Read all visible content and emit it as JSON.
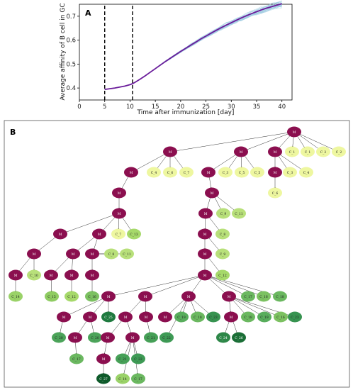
{
  "chart_data": [
    {
      "panel": "A",
      "type": "line",
      "xlabel": "Time after immunization [day]",
      "ylabel": "Average affinity of B cell in GC",
      "xlim": [
        0,
        42
      ],
      "ylim": [
        0.35,
        0.75
      ],
      "xticks": [
        "0",
        "5",
        "10",
        "15",
        "20",
        "25",
        "30",
        "35",
        "40"
      ],
      "yticks": [
        "0.4",
        "0.5",
        "0.6",
        "0.7"
      ],
      "xtick_values": [
        0,
        5,
        10,
        15,
        20,
        25,
        30,
        35,
        40
      ],
      "ytick_values": [
        0.4,
        0.5,
        0.6,
        0.7
      ],
      "vlines": [
        5,
        10.5
      ],
      "mean_series": {
        "color": "#6a1b9a",
        "x": [
          5,
          6,
          7,
          8,
          9,
          10,
          10.5,
          11,
          12,
          13,
          14,
          15,
          16,
          17,
          18,
          19,
          20,
          21,
          22,
          23,
          24,
          25,
          26,
          27,
          28,
          29,
          30,
          31,
          32,
          33,
          34,
          35,
          36,
          37,
          38,
          39,
          40
        ],
        "y": [
          0.394,
          0.397,
          0.4,
          0.404,
          0.408,
          0.414,
          0.418,
          0.424,
          0.437,
          0.451,
          0.466,
          0.481,
          0.496,
          0.511,
          0.525,
          0.539,
          0.553,
          0.566,
          0.579,
          0.592,
          0.605,
          0.617,
          0.629,
          0.641,
          0.652,
          0.663,
          0.673,
          0.683,
          0.693,
          0.702,
          0.711,
          0.719,
          0.727,
          0.734,
          0.74,
          0.746,
          0.752
        ]
      },
      "replicate_color": "#9ecae1",
      "replicate_count": 30
    },
    {
      "panel": "B",
      "type": "tree",
      "colors": {
        "M": "#8b0f4f",
        "C_1": "#eef7a0",
        "C_2": "#eef7a0",
        "C_3": "#eef7a0",
        "C_4": "#eef7a0",
        "C_5": "#eef7a0",
        "C_6": "#eef7a0",
        "C_7": "#eef7a0",
        "C_8": "#b8e07a",
        "C_9": "#b8e07a",
        "C_10": "#b8e07a",
        "C_11": "#b8e07a",
        "C_12": "#a6d96a",
        "C_13": "#a6d96a",
        "C_14": "#9ad268",
        "C_15": "#8fcc62",
        "C_16": "#7cc161",
        "C_17": "#6bb860",
        "C_18": "#6bb860",
        "C_19": "#58ad5c",
        "C_20": "#4ca45a",
        "C_21": "#46a057",
        "C_22": "#3e9a55",
        "C_23": "#379350",
        "C_24": "#2d8748",
        "C_25": "#1f7a3f",
        "C_26": "#1a6e36",
        "C_27": "#0e5a2a"
      },
      "nodes": [
        {
          "id": "n0",
          "label": "M"
        },
        {
          "id": "n1",
          "label": "M",
          "parent": "n0"
        },
        {
          "id": "n2",
          "label": "M",
          "parent": "n0"
        },
        {
          "id": "n3",
          "label": "M",
          "parent": "n0"
        },
        {
          "id": "n4",
          "label": "C_1",
          "parent": "n0"
        },
        {
          "id": "n5",
          "label": "C_1",
          "parent": "n0"
        },
        {
          "id": "n6",
          "label": "C_2",
          "parent": "n0"
        },
        {
          "id": "n7",
          "label": "C_2",
          "parent": "n0"
        },
        {
          "id": "n8",
          "label": "M",
          "parent": "n1"
        },
        {
          "id": "n9",
          "label": "C_4",
          "parent": "n1"
        },
        {
          "id": "n10",
          "label": "C_6",
          "parent": "n1"
        },
        {
          "id": "n11",
          "label": "C_7",
          "parent": "n1"
        },
        {
          "id": "n12",
          "label": "M",
          "parent": "n2"
        },
        {
          "id": "n13",
          "label": "C_3",
          "parent": "n2"
        },
        {
          "id": "n14",
          "label": "C_5",
          "parent": "n2"
        },
        {
          "id": "n15",
          "label": "C_5",
          "parent": "n2"
        },
        {
          "id": "n16",
          "label": "M",
          "parent": "n3"
        },
        {
          "id": "n17",
          "label": "C_3",
          "parent": "n3"
        },
        {
          "id": "n18",
          "label": "C_4",
          "parent": "n3"
        },
        {
          "id": "n19",
          "label": "C_6",
          "parent": "n16"
        },
        {
          "id": "n20",
          "label": "M",
          "parent": "n8"
        },
        {
          "id": "n21",
          "label": "M",
          "parent": "n20"
        },
        {
          "id": "n22",
          "label": "M",
          "parent": "n21"
        },
        {
          "id": "n23",
          "label": "M",
          "parent": "n21"
        },
        {
          "id": "n24",
          "label": "C_7",
          "parent": "n21"
        },
        {
          "id": "n25",
          "label": "C_13",
          "parent": "n21"
        },
        {
          "id": "n26",
          "label": "M",
          "parent": "n22"
        },
        {
          "id": "n27",
          "label": "M",
          "parent": "n26"
        },
        {
          "id": "n28",
          "label": "C_10",
          "parent": "n26"
        },
        {
          "id": "n29",
          "label": "C_14",
          "parent": "n27"
        },
        {
          "id": "n30",
          "label": "M",
          "parent": "n23"
        },
        {
          "id": "n31",
          "label": "M",
          "parent": "n23"
        },
        {
          "id": "n32",
          "label": "M",
          "parent": "n30"
        },
        {
          "id": "n33",
          "label": "M",
          "parent": "n30"
        },
        {
          "id": "n34",
          "label": "C_15",
          "parent": "n32"
        },
        {
          "id": "n35",
          "label": "C_12",
          "parent": "n33"
        },
        {
          "id": "n36",
          "label": "C_8",
          "parent": "n31"
        },
        {
          "id": "n37",
          "label": "C_11",
          "parent": "n31"
        },
        {
          "id": "n38",
          "label": "M",
          "parent": "n31"
        },
        {
          "id": "n39",
          "label": "C_16",
          "parent": "n38"
        },
        {
          "id": "n40",
          "label": "M",
          "parent": "n12"
        },
        {
          "id": "n41",
          "label": "M",
          "parent": "n40"
        },
        {
          "id": "n42",
          "label": "C_9",
          "parent": "n40"
        },
        {
          "id": "n43",
          "label": "C_11",
          "parent": "n40"
        },
        {
          "id": "n44",
          "label": "M",
          "parent": "n41"
        },
        {
          "id": "n45",
          "label": "C_8",
          "parent": "n41"
        },
        {
          "id": "n46",
          "label": "M",
          "parent": "n44"
        },
        {
          "id": "n47",
          "label": "C_9",
          "parent": "n44"
        },
        {
          "id": "n48",
          "label": "M",
          "parent": "n46"
        },
        {
          "id": "n49",
          "label": "C_12",
          "parent": "n46"
        },
        {
          "id": "n50",
          "label": "M",
          "parent": "n48"
        },
        {
          "id": "n51",
          "label": "M",
          "parent": "n48"
        },
        {
          "id": "n52",
          "label": "M",
          "parent": "n48"
        },
        {
          "id": "n53",
          "label": "M",
          "parent": "n48"
        },
        {
          "id": "n54",
          "label": "C_17",
          "parent": "n48"
        },
        {
          "id": "n55",
          "label": "C_16",
          "parent": "n48"
        },
        {
          "id": "n56",
          "label": "C_18",
          "parent": "n48"
        },
        {
          "id": "n57",
          "label": "M",
          "parent": "n50"
        },
        {
          "id": "n58",
          "label": "M",
          "parent": "n50"
        },
        {
          "id": "n59",
          "label": "C_25",
          "parent": "n50"
        },
        {
          "id": "n60",
          "label": "C_20",
          "parent": "n57"
        },
        {
          "id": "n61",
          "label": "M",
          "parent": "n58"
        },
        {
          "id": "n62",
          "label": "C_20",
          "parent": "n58"
        },
        {
          "id": "n63",
          "label": "C_17",
          "parent": "n61"
        },
        {
          "id": "n64",
          "label": "M",
          "parent": "n51"
        },
        {
          "id": "n65",
          "label": "M",
          "parent": "n51"
        },
        {
          "id": "n66",
          "label": "M",
          "parent": "n64"
        },
        {
          "id": "n67",
          "label": "M",
          "parent": "n64"
        },
        {
          "id": "n68",
          "label": "C_21",
          "parent": "n65"
        },
        {
          "id": "n69",
          "label": "M",
          "parent": "n66"
        },
        {
          "id": "n70",
          "label": "C_27",
          "parent": "n69"
        },
        {
          "id": "n71",
          "label": "C_21",
          "parent": "n67"
        },
        {
          "id": "n72",
          "label": "C_22",
          "parent": "n67"
        },
        {
          "id": "n73",
          "label": "C_14",
          "parent": "n67"
        },
        {
          "id": "n74",
          "label": "C_17",
          "parent": "n67"
        },
        {
          "id": "n75",
          "label": "M",
          "parent": "n52"
        },
        {
          "id": "n76",
          "label": "C_19",
          "parent": "n52"
        },
        {
          "id": "n77",
          "label": "C_18",
          "parent": "n52"
        },
        {
          "id": "n78",
          "label": "C_23",
          "parent": "n52"
        },
        {
          "id": "n79",
          "label": "C_22",
          "parent": "n52"
        },
        {
          "id": "n80",
          "label": "M",
          "parent": "n53"
        },
        {
          "id": "n81",
          "label": "C_18",
          "parent": "n53"
        },
        {
          "id": "n82",
          "label": "C_19",
          "parent": "n53"
        },
        {
          "id": "n83",
          "label": "C_16",
          "parent": "n53"
        },
        {
          "id": "n84",
          "label": "C_23",
          "parent": "n53"
        },
        {
          "id": "n85",
          "label": "C_24",
          "parent": "n80"
        },
        {
          "id": "n86",
          "label": "C_26",
          "parent": "n80"
        }
      ]
    }
  ]
}
